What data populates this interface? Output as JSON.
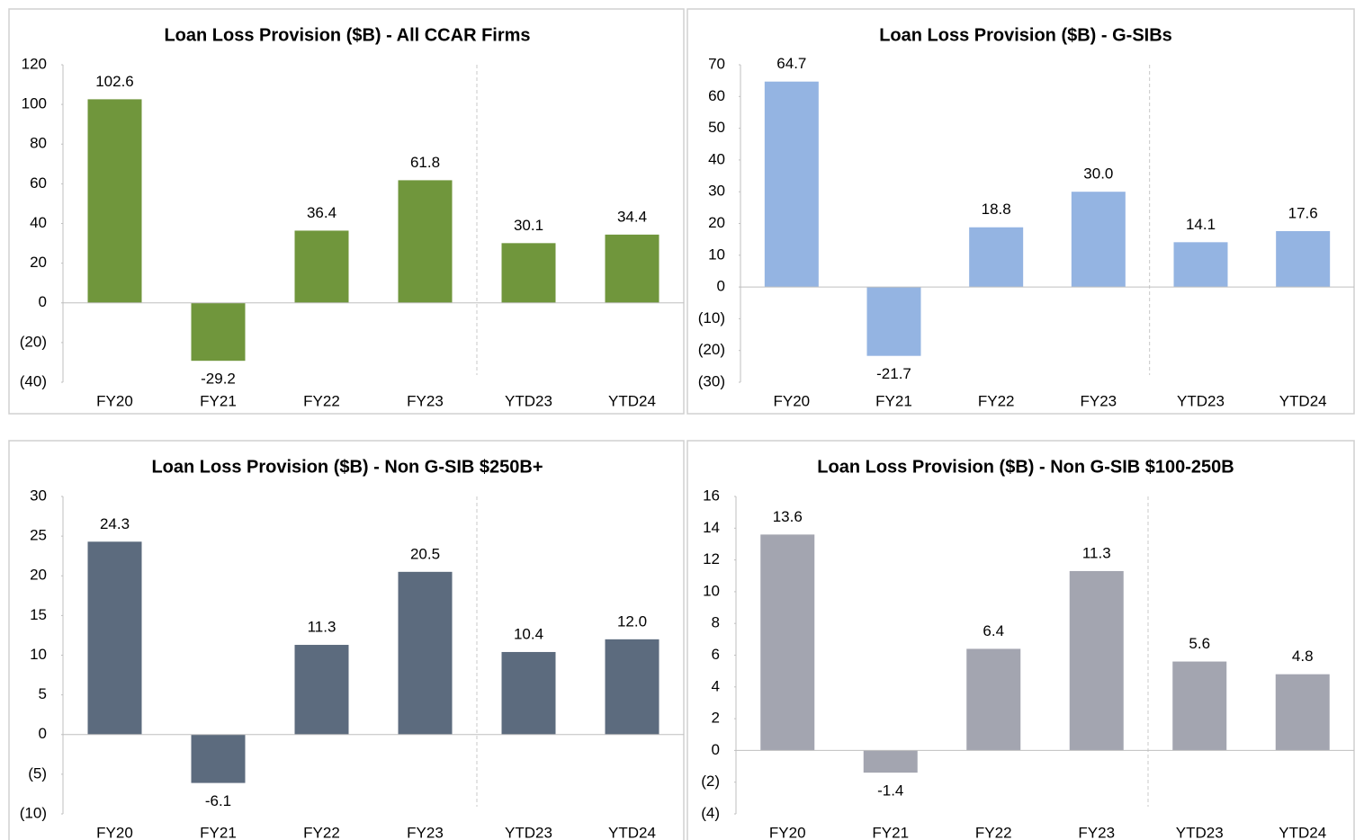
{
  "chart_data": [
    {
      "type": "bar",
      "title": "Loan Loss Provision ($B) - All CCAR Firms",
      "categories": [
        "FY20",
        "FY21",
        "FY22",
        "FY23",
        "YTD23",
        "YTD24"
      ],
      "values": [
        102.6,
        -29.2,
        36.4,
        61.8,
        30.1,
        34.4
      ],
      "value_labels": [
        "102.6",
        "-29.2",
        "36.4",
        "61.8",
        "30.1",
        "34.4"
      ],
      "color": "#70963c",
      "ylim": [
        -40,
        120
      ],
      "yticks": [
        {
          "value": -40,
          "label": "(40)"
        },
        {
          "value": -20,
          "label": "(20)"
        },
        0,
        20,
        40,
        60,
        80,
        100,
        120
      ]
    },
    {
      "type": "bar",
      "title": "Loan Loss Provision ($B) - G-SIBs",
      "categories": [
        "FY20",
        "FY21",
        "FY22",
        "FY23",
        "YTD23",
        "YTD24"
      ],
      "values": [
        64.7,
        -21.7,
        18.8,
        30.0,
        14.1,
        17.6
      ],
      "value_labels": [
        "64.7",
        "-21.7",
        "18.8",
        "30.0",
        "14.1",
        "17.6"
      ],
      "color": "#94b4e2",
      "ylim": [
        -30,
        70
      ],
      "yticks": [
        {
          "value": -30,
          "label": "(30)"
        },
        {
          "value": -20,
          "label": "(20)"
        },
        {
          "value": -10,
          "label": "(10)"
        },
        0,
        10,
        20,
        30,
        40,
        50,
        60,
        70
      ]
    },
    {
      "type": "bar",
      "title": "Loan Loss Provision ($B) - Non G-SIB $250B+",
      "categories": [
        "FY20",
        "FY21",
        "FY22",
        "FY23",
        "YTD23",
        "YTD24"
      ],
      "values": [
        24.3,
        -6.1,
        11.3,
        20.5,
        10.4,
        12.0
      ],
      "value_labels": [
        "24.3",
        "-6.1",
        "11.3",
        "20.5",
        "10.4",
        "12.0"
      ],
      "color": "#5c6b7e",
      "ylim": [
        -10,
        30
      ],
      "yticks": [
        {
          "value": -10,
          "label": "(10)"
        },
        {
          "value": -5,
          "label": "(5)"
        },
        0,
        5,
        10,
        15,
        20,
        25,
        30
      ]
    },
    {
      "type": "bar",
      "title": "Loan Loss Provision ($B) - Non G-SIB $100-250B",
      "categories": [
        "FY20",
        "FY21",
        "FY22",
        "FY23",
        "YTD23",
        "YTD24"
      ],
      "values": [
        13.6,
        -1.4,
        6.4,
        11.3,
        5.6,
        4.8
      ],
      "value_labels": [
        "13.6",
        "-1.4",
        "6.4",
        "11.3",
        "5.6",
        "4.8"
      ],
      "color": "#a3a5b0",
      "ylim": [
        -4,
        16
      ],
      "yticks": [
        {
          "value": -4,
          "label": "(4)"
        },
        {
          "value": -2,
          "label": "(2)"
        },
        0,
        2,
        4,
        6,
        8,
        10,
        12,
        14,
        16
      ]
    }
  ]
}
